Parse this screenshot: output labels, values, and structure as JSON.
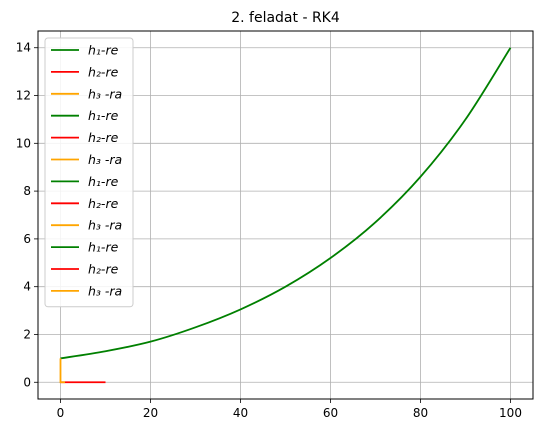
{
  "chart_data": {
    "type": "line",
    "title": "2. feladat - RK4",
    "xlabel": "",
    "ylabel": "",
    "xlim": [
      -5,
      105
    ],
    "ylim": [
      -0.7,
      14.7
    ],
    "xticks": [
      0,
      20,
      40,
      60,
      80,
      100
    ],
    "yticks": [
      0,
      2,
      4,
      6,
      8,
      10,
      12,
      14
    ],
    "grid": true,
    "legend_position": "top-left",
    "colors": {
      "h1": "#008000",
      "h2": "#ff0000",
      "h3": "#ffa500"
    },
    "legend": [
      {
        "label": "h₁-re",
        "color": "#008000"
      },
      {
        "label": "h₂-re",
        "color": "#ff0000"
      },
      {
        "label": "h₃ -ra",
        "color": "#ffa500"
      },
      {
        "label": "h₁-re",
        "color": "#008000"
      },
      {
        "label": "h₂-re",
        "color": "#ff0000"
      },
      {
        "label": "h₃ -ra",
        "color": "#ffa500"
      },
      {
        "label": "h₁-re",
        "color": "#008000"
      },
      {
        "label": "h₂-re",
        "color": "#ff0000"
      },
      {
        "label": "h₃ -ra",
        "color": "#ffa500"
      },
      {
        "label": "h₁-re",
        "color": "#008000"
      },
      {
        "label": "h₂-re",
        "color": "#ff0000"
      },
      {
        "label": "h₃ -ra",
        "color": "#ffa500"
      }
    ],
    "series": [
      {
        "color": "#008000",
        "x": [
          0,
          10,
          20,
          30,
          40,
          50,
          60,
          70,
          80,
          90,
          100
        ],
        "y": [
          1.0,
          1.3,
          1.7,
          2.3,
          3.05,
          4.0,
          5.2,
          6.7,
          8.6,
          11.0,
          14.0
        ]
      },
      {
        "color": "#ff0000",
        "x": [
          0,
          10
        ],
        "y": [
          0,
          0
        ]
      },
      {
        "color": "#ffa500",
        "x": [
          0,
          0,
          1
        ],
        "y": [
          1.0,
          0,
          0
        ]
      }
    ]
  }
}
